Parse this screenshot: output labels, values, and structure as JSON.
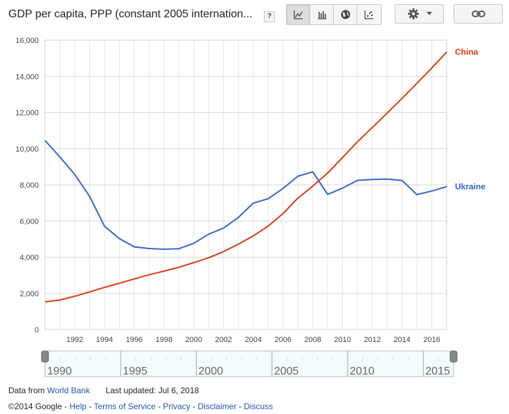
{
  "header": {
    "title": "GDP per capita, PPP (constant 2005 internation...",
    "help_label": "?"
  },
  "toolbar": {
    "views": [
      {
        "icon": "line-chart-icon",
        "active": true
      },
      {
        "icon": "bar-chart-icon",
        "active": false
      },
      {
        "icon": "globe-icon",
        "active": false
      },
      {
        "icon": "scatter-chart-icon",
        "active": false
      }
    ],
    "settings_icon": "gear-icon",
    "link_icon": "link-icon"
  },
  "chart_data": {
    "type": "line",
    "title": "",
    "xlabel": "",
    "ylabel": "",
    "xlim": [
      1990,
      2017
    ],
    "ylim": [
      0,
      16000
    ],
    "y_ticks": [
      "0",
      "2,000",
      "4,000",
      "6,000",
      "8,000",
      "10,000",
      "12,000",
      "14,000",
      "16,000"
    ],
    "x_ticks": [
      "1992",
      "1994",
      "1996",
      "1998",
      "2000",
      "2002",
      "2004",
      "2006",
      "2008",
      "2010",
      "2012",
      "2014",
      "2016"
    ],
    "grid": true,
    "legend": "right, end of lines",
    "series": [
      {
        "name": "China",
        "color": "#dc3912",
        "x": [
          1990,
          1991,
          1992,
          1993,
          1994,
          1995,
          1996,
          1997,
          1998,
          1999,
          2000,
          2001,
          2002,
          2003,
          2004,
          2005,
          2006,
          2007,
          2008,
          2009,
          2010,
          2011,
          2012,
          2013,
          2014,
          2015,
          2016,
          2017
        ],
        "values": [
          1530,
          1630,
          1840,
          2080,
          2330,
          2560,
          2800,
          3030,
          3230,
          3440,
          3700,
          3970,
          4310,
          4720,
          5180,
          5720,
          6410,
          7270,
          7930,
          8650,
          9510,
          10380,
          11170,
          11970,
          12780,
          13610,
          14460,
          15340
        ]
      },
      {
        "name": "Ukraine",
        "color": "#3366cc",
        "x": [
          1990,
          1991,
          1992,
          1993,
          1994,
          1995,
          1996,
          1997,
          1998,
          1999,
          2000,
          2001,
          2002,
          2003,
          2004,
          2005,
          2006,
          2007,
          2008,
          2009,
          2010,
          2011,
          2012,
          2013,
          2014,
          2015,
          2016,
          2017
        ],
        "values": [
          10450,
          9540,
          8570,
          7360,
          5710,
          5030,
          4570,
          4480,
          4440,
          4470,
          4770,
          5270,
          5610,
          6200,
          6990,
          7230,
          7800,
          8480,
          8720,
          7470,
          7820,
          8250,
          8300,
          8320,
          8240,
          7460,
          7660,
          7900
        ]
      }
    ]
  },
  "slider": {
    "ticks": [
      "1990",
      "1995",
      "2000",
      "2005",
      "2010",
      "2015"
    ]
  },
  "footer": {
    "data_from_label": "Data from",
    "source_link": "World Bank",
    "last_updated": "Last updated: Jul 6, 2018",
    "copyright": "©2014 Google",
    "sep": " - ",
    "links": [
      "Help",
      "Terms of Service",
      "Privacy",
      "Disclaimer",
      "Discuss"
    ]
  }
}
